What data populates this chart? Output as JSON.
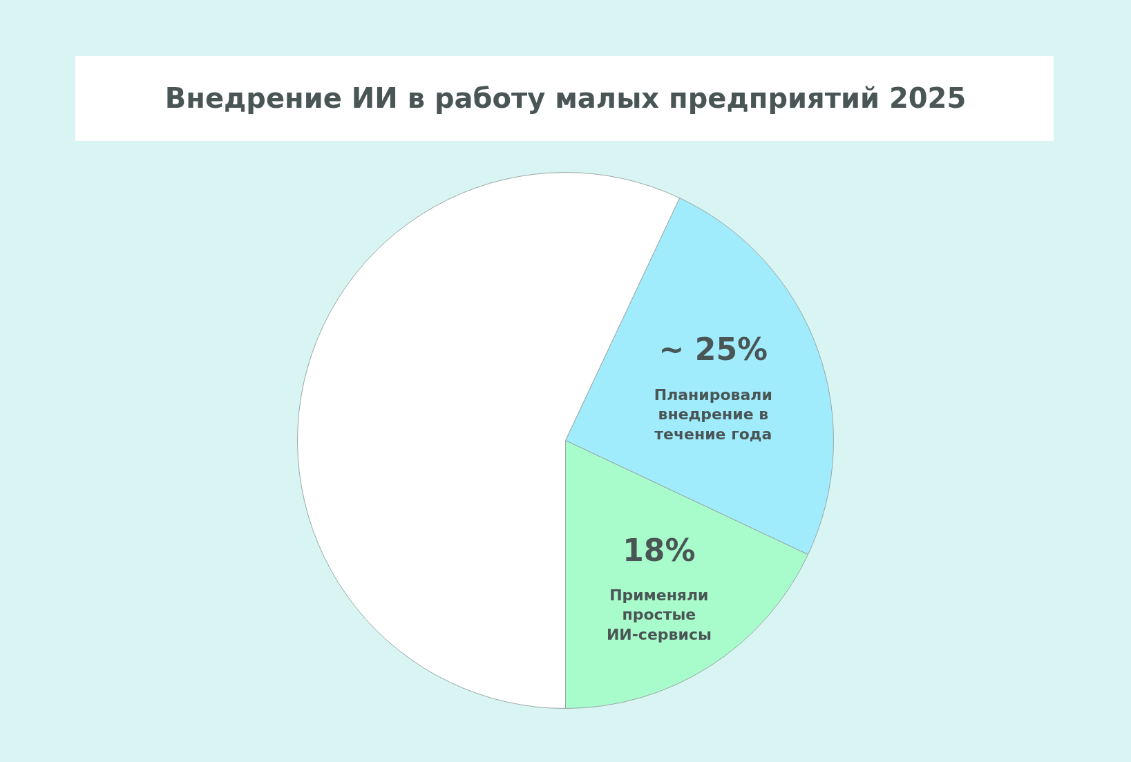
{
  "chart_data": {
    "type": "pie",
    "title": "Внедрение ИИ в работу малых предприятий 2025",
    "categories": [
      "Планировали внедрение в течение года",
      "Применяли простые ИИ-сервисы",
      null
    ],
    "values": [
      25,
      18,
      57
    ],
    "value_labels": [
      "~ 25%",
      "18%",
      null
    ],
    "colors": [
      "#a0ecfc",
      "#a8fccc",
      "#ffffff"
    ],
    "legend": false
  }
}
